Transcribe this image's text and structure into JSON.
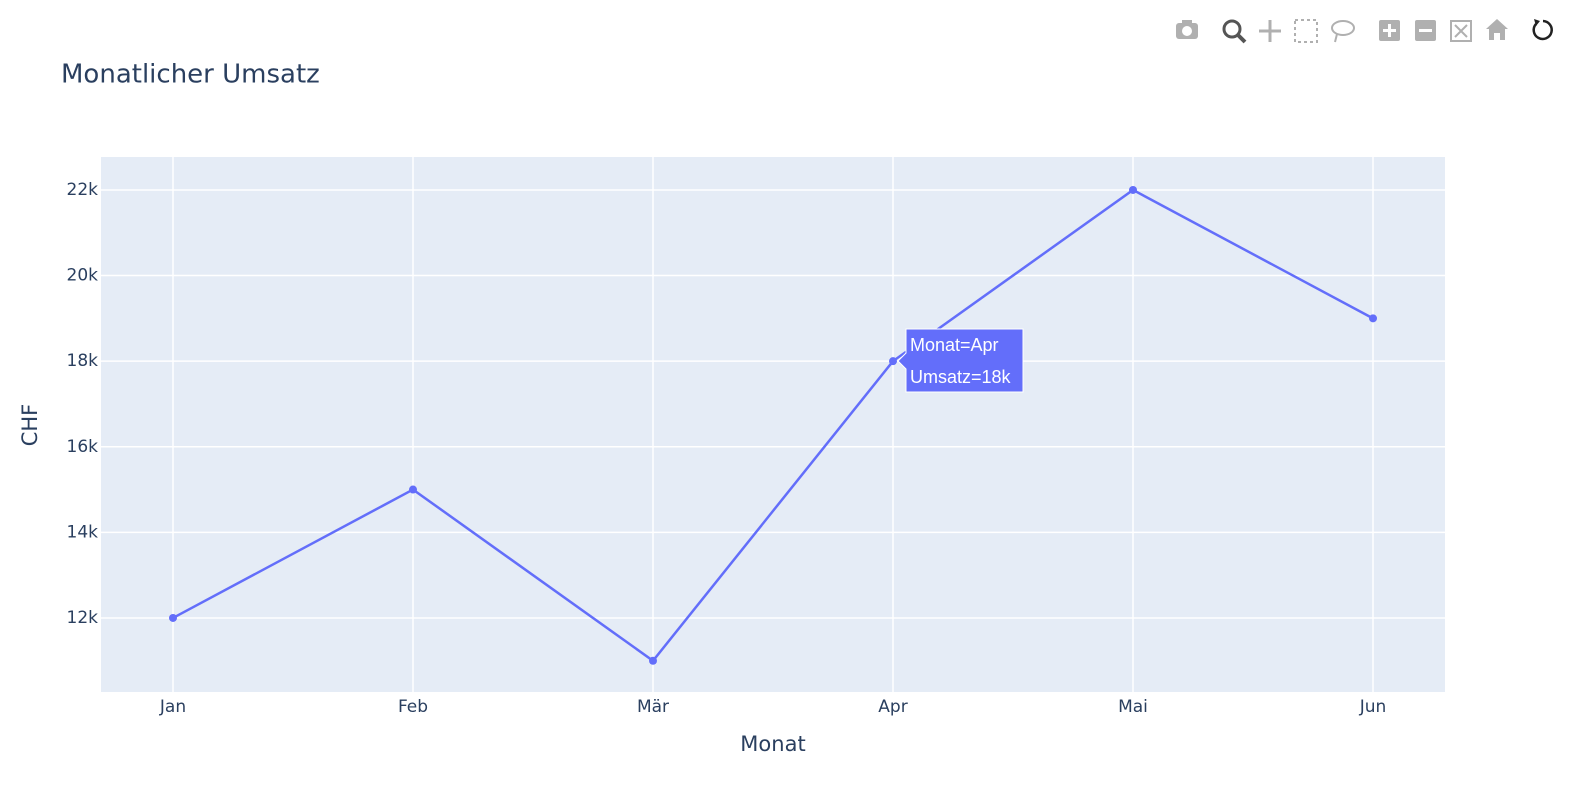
{
  "chart_data": {
    "type": "line",
    "title": "Monatlicher Umsatz",
    "x_label": "Monat",
    "y_label": "CHF",
    "categories": [
      "Jan",
      "Feb",
      "Mär",
      "Apr",
      "Mai",
      "Jun"
    ],
    "values": [
      12000,
      15000,
      11000,
      18000,
      22000,
      19000
    ],
    "color": "#636efa",
    "ylim": [
      10270,
      22770
    ],
    "yticks": [
      {
        "value": 12000,
        "label": "12k"
      },
      {
        "value": 14000,
        "label": "14k"
      },
      {
        "value": 16000,
        "label": "16k"
      },
      {
        "value": 18000,
        "label": "18k"
      },
      {
        "value": 20000,
        "label": "20k"
      },
      {
        "value": 22000,
        "label": "22k"
      }
    ],
    "grid": true,
    "tooltip": [
      "Monat=Apr",
      "Umsatz=18k"
    ]
  }
}
